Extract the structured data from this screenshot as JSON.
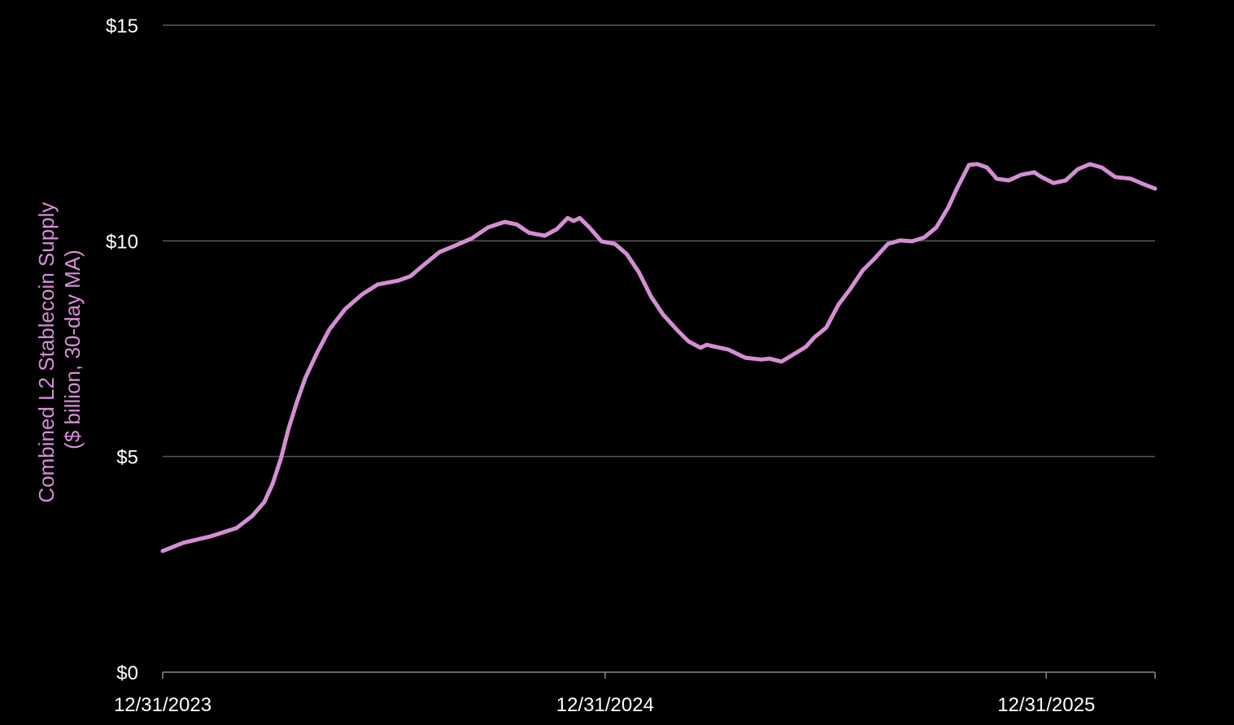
{
  "chart_data": {
    "type": "line",
    "title": "",
    "xlabel": "",
    "ylabel_lines": [
      "Combined L2 Stablecoin Supply",
      "($ billion, 30-day MA)"
    ],
    "xlim": [
      "2023-12-31",
      "2026-03-31"
    ],
    "ylim": [
      0,
      15
    ],
    "grid": "horizontal",
    "legend": "none",
    "x_ticks": [
      {
        "date": "2023-12-31",
        "label": "12/31/2023"
      },
      {
        "date": "2024-12-31",
        "label": "12/31/2024"
      },
      {
        "date": "2025-12-31",
        "label": "12/31/2025"
      }
    ],
    "y_ticks": [
      {
        "value": 0,
        "label": "$0"
      },
      {
        "value": 5,
        "label": "$5"
      },
      {
        "value": 10,
        "label": "$10"
      },
      {
        "value": 15,
        "label": "$15"
      }
    ],
    "colors": {
      "line": "#d48ed4",
      "ylabel": "#d68fd6",
      "grid": "#595959",
      "background": "#000000",
      "text": "#ffffff"
    },
    "series": [
      {
        "x": [
          "2023-12-31",
          "2024-01-17",
          "2024-02-09",
          "2024-03-01",
          "2024-03-14",
          "2024-03-24",
          "2024-03-31",
          "2024-04-07",
          "2024-04-13",
          "2024-04-20",
          "2024-04-27",
          "2024-05-07",
          "2024-05-17",
          "2024-05-30",
          "2024-06-13",
          "2024-06-26",
          "2024-07-13",
          "2024-07-23",
          "2024-08-02",
          "2024-08-16",
          "2024-08-29",
          "2024-09-12",
          "2024-09-25",
          "2024-10-09",
          "2024-10-19",
          "2024-10-29",
          "2024-11-11",
          "2024-11-21",
          "2024-11-30",
          "2024-12-05",
          "2024-12-10",
          "2024-12-18",
          "2024-12-28",
          "2025-01-08",
          "2025-01-18",
          "2025-01-28",
          "2025-02-07",
          "2025-02-17",
          "2025-02-28",
          "2025-03-10",
          "2025-03-20",
          "2025-03-25",
          "2025-04-02",
          "2025-04-12",
          "2025-04-26",
          "2025-05-09",
          "2025-05-16",
          "2025-05-26",
          "2025-06-05",
          "2025-06-15",
          "2025-06-22",
          "2025-07-02",
          "2025-07-12",
          "2025-07-22",
          "2025-08-01",
          "2025-08-11",
          "2025-08-22",
          "2025-09-01",
          "2025-09-11",
          "2025-09-21",
          "2025-10-01",
          "2025-10-11",
          "2025-10-18",
          "2025-10-28",
          "2025-11-04",
          "2025-11-12",
          "2025-11-20",
          "2025-11-30",
          "2025-12-10",
          "2025-12-21",
          "2025-12-27",
          "2026-01-06",
          "2026-01-16",
          "2026-01-26",
          "2026-02-05",
          "2026-02-15",
          "2026-02-26",
          "2026-03-11",
          "2026-03-21",
          "2026-03-31"
        ],
        "y": [
          2.81,
          3.0,
          3.15,
          3.34,
          3.62,
          3.94,
          4.37,
          4.97,
          5.63,
          6.26,
          6.82,
          7.42,
          7.95,
          8.42,
          8.76,
          8.99,
          9.08,
          9.18,
          9.42,
          9.74,
          9.89,
          10.06,
          10.31,
          10.44,
          10.38,
          10.19,
          10.12,
          10.27,
          10.53,
          10.46,
          10.53,
          10.31,
          9.99,
          9.93,
          9.69,
          9.27,
          8.71,
          8.29,
          7.95,
          7.67,
          7.52,
          7.59,
          7.54,
          7.48,
          7.29,
          7.25,
          7.27,
          7.2,
          7.37,
          7.54,
          7.76,
          7.99,
          8.52,
          8.89,
          9.31,
          9.59,
          9.93,
          10.01,
          9.99,
          10.08,
          10.31,
          10.78,
          11.21,
          11.76,
          11.78,
          11.7,
          11.44,
          11.4,
          11.53,
          11.59,
          11.48,
          11.34,
          11.4,
          11.66,
          11.78,
          11.7,
          11.48,
          11.44,
          11.32,
          11.21
        ]
      }
    ]
  }
}
